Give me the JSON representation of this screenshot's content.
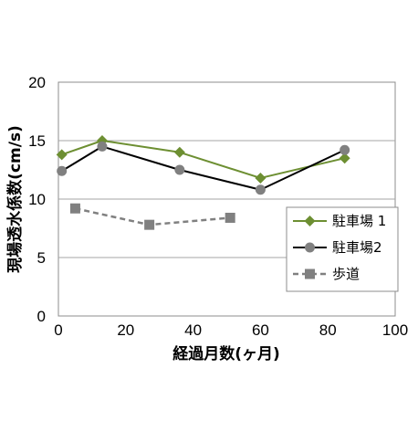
{
  "chart_data": {
    "type": "line",
    "xlabel": "経過月数(ヶ月)",
    "ylabel": "現場透水係数(cm/s)",
    "xlim": [
      0,
      100
    ],
    "ylim": [
      0,
      20
    ],
    "x_ticks": [
      "0",
      "20",
      "40",
      "60",
      "80",
      "100"
    ],
    "y_ticks": [
      "0",
      "5",
      "10",
      "15",
      "20"
    ],
    "grid": "horizontal",
    "legend_position": "bottom-right",
    "series": [
      {
        "name": "駐車場1",
        "legend_label": "駐車場 1",
        "color": "#6d8f32",
        "marker": "diamond",
        "line_style": "solid",
        "x": [
          1,
          13,
          36,
          60,
          85
        ],
        "values": [
          13.8,
          15.0,
          14.0,
          11.8,
          13.5
        ]
      },
      {
        "name": "駐車場2",
        "legend_label": "駐車場2",
        "color": "#000000",
        "marker_color": "#808080",
        "marker": "circle",
        "line_style": "solid",
        "x": [
          1,
          13,
          36,
          60,
          85
        ],
        "values": [
          12.4,
          14.5,
          12.5,
          10.8,
          14.2
        ]
      },
      {
        "name": "歩道",
        "legend_label": "歩道",
        "color": "#808080",
        "marker": "square",
        "line_style": "dashed",
        "x": [
          5,
          27,
          51
        ],
        "values": [
          9.2,
          7.8,
          8.4
        ]
      }
    ]
  }
}
